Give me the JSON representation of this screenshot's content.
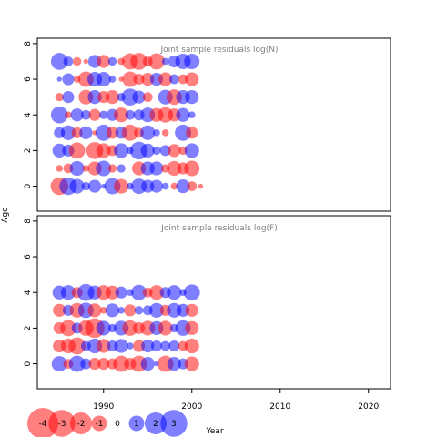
{
  "chart_data": {
    "type": "scatter",
    "subtype": "bubble",
    "ylabel": "Age",
    "xlabel": "Year",
    "colors": {
      "negative": "#ff0000",
      "positive": "#0000ff",
      "frame": "#000000",
      "panel_title": "#808080"
    },
    "x_ticks": [
      "1990",
      "2000",
      "2010",
      "2020"
    ],
    "xlim": [
      1982.5,
      2022.5
    ],
    "years_start": 1985,
    "years_end": 2020,
    "legend": {
      "values": [
        -4,
        -3,
        -2,
        -1,
        0,
        1,
        2,
        3
      ],
      "labels": [
        "-4",
        "-3",
        "-2",
        "-1",
        "0",
        "1",
        "2",
        "3"
      ]
    },
    "panels": [
      {
        "title": "Joint sample residuals log(N)",
        "y_ticks": [
          "0",
          "2",
          "4",
          "6",
          "8"
        ],
        "ylim": [
          -1.4,
          8.3
        ],
        "ages": [
          0,
          1,
          2,
          3,
          4,
          5,
          6,
          7
        ],
        "residuals": [
          [
            -1.3,
            1.3,
            0.9,
            0.3,
            0.7,
            0.1,
            1.1,
            -0.9,
            0.2,
            1.0,
            0.7,
            0.7,
            0.2,
            -0.2,
            0.8,
            -0.4,
            -0.1,
            0.0,
            0.0,
            0.0,
            0.0,
            0.0,
            0.0,
            0.0,
            0.0,
            0.0,
            0.0,
            0.0,
            0.0,
            0.0,
            0.0,
            0.0,
            0.0,
            0.0,
            0.0,
            0.0
          ],
          [
            -0.2,
            -0.4,
            0.9,
            -0.2,
            -0.8,
            1.0,
            -0.3,
            0.3,
            0.0,
            -0.8,
            0.8,
            0.8,
            -0.3,
            -0.9,
            -0.6,
            -1.0,
            0.0,
            0.0,
            0.0,
            0.0,
            0.0,
            0.0,
            0.0,
            0.0,
            0.0,
            0.0,
            0.0,
            0.0,
            0.0,
            0.0,
            0.0,
            0.0,
            0.0,
            0.0,
            0.0,
            0.0
          ],
          [
            0.8,
            0.6,
            -1.1,
            0.0,
            -1.2,
            -0.9,
            -0.5,
            0.9,
            0.2,
            1.3,
            0.8,
            0.3,
            0.5,
            -0.7,
            -0.3,
            0.9,
            0.0,
            0.0,
            0.0,
            0.0,
            0.0,
            0.0,
            0.0,
            0.0,
            0.0,
            0.0,
            0.0,
            0.0,
            0.0,
            0.0,
            0.0,
            0.0,
            0.0,
            0.0,
            0.0,
            0.0
          ],
          [
            0.5,
            0.9,
            -0.5,
            0.7,
            -0.1,
            1.1,
            -0.6,
            0.6,
            -1.1,
            -0.4,
            0.9,
            0.2,
            -0.2,
            0.0,
            1.1,
            -0.6,
            0.0,
            0.0,
            0.0,
            0.0,
            0.0,
            0.0,
            0.0,
            0.0,
            0.0,
            0.0,
            0.0,
            0.0,
            0.0,
            0.0,
            0.0,
            0.0,
            0.0,
            0.0,
            0.0,
            0.0
          ],
          [
            1.2,
            -0.2,
            0.7,
            0.4,
            -0.6,
            0.3,
            0.6,
            -0.9,
            0.4,
            0.5,
            0.9,
            -0.8,
            -1.0,
            -0.7,
            0.8,
            0.2,
            0.0,
            0.0,
            0.0,
            0.0,
            0.0,
            0.0,
            0.0,
            0.0,
            0.0,
            0.0,
            0.0,
            0.0,
            0.0,
            0.0,
            0.0,
            0.0,
            0.0,
            0.0,
            0.0,
            0.0
          ],
          [
            -0.3,
            0.6,
            0.0,
            -0.9,
            0.8,
            -0.6,
            -0.8,
            0.3,
            1.2,
            0.7,
            -0.4,
            0.0,
            0.9,
            -1.0,
            0.8,
            0.8,
            0.0,
            0.0,
            0.0,
            0.0,
            0.0,
            0.0,
            0.0,
            0.0,
            0.0,
            0.0,
            0.0,
            0.0,
            0.0,
            0.0,
            0.0,
            0.0,
            0.0,
            0.0,
            0.0,
            0.0
          ],
          [
            0.1,
            0.6,
            -0.2,
            -1.0,
            0.9,
            0.9,
            0.2,
            -0.1,
            -1.0,
            -0.5,
            -0.7,
            0.7,
            -0.8,
            0.4,
            -0.4,
            -0.8,
            0.0,
            0.0,
            0.0,
            0.0,
            0.0,
            0.0,
            0.0,
            0.0,
            0.0,
            0.0,
            0.0,
            0.0,
            0.0,
            0.0,
            0.0,
            0.0,
            0.0,
            0.0,
            0.0,
            0.0
          ],
          [
            1.2,
            0.4,
            -0.3,
            -0.1,
            0.7,
            -0.7,
            0.3,
            -0.2,
            -1.1,
            -1.2,
            -0.4,
            -1.1,
            0.2,
            0.6,
            1.0,
            1.0,
            0.0,
            0.0,
            0.0,
            0.0,
            0.0,
            0.0,
            0.0,
            0.0,
            0.0,
            0.0,
            0.0,
            0.0,
            0.0,
            0.0,
            0.0,
            0.0,
            0.0,
            0.0,
            0.0,
            0.0
          ]
        ]
      },
      {
        "title": "Joint sample residuals log(F)",
        "y_ticks": [
          "0",
          "2",
          "4",
          "6",
          "8"
        ],
        "ylim": [
          -1.4,
          8.3
        ],
        "ages": [
          0,
          1,
          2,
          3,
          4
        ],
        "residuals": [
          [
            1.0,
            -0.4,
            1.1,
            0.5,
            -0.6,
            -0.6,
            -0.5,
            -1.1,
            -0.6,
            -1.1,
            0.8,
            0.1,
            -1.1,
            0.8,
            0.5,
            -0.9,
            0.0,
            0.0,
            0.0,
            0.0,
            0.0,
            0.0,
            0.0,
            0.0,
            0.0,
            0.0,
            0.0,
            0.0,
            0.0,
            0.0,
            0.0,
            0.0,
            0.0,
            0.0,
            0.0,
            0.0
          ],
          [
            -0.7,
            -0.9,
            -1.2,
            0.4,
            0.9,
            -0.8,
            0.5,
            0.8,
            0.2,
            -0.6,
            0.7,
            0.5,
            0.4,
            0.5,
            -0.4,
            -0.9,
            0.0,
            0.0,
            0.0,
            0.0,
            0.0,
            0.0,
            0.0,
            0.0,
            0.0,
            0.0,
            0.0,
            0.0,
            0.0,
            0.0,
            0.0,
            0.0,
            0.0,
            0.0,
            0.0,
            0.0
          ],
          [
            -0.6,
            -1.1,
            0.5,
            -1.0,
            -1.6,
            0.9,
            0.3,
            0.9,
            -1.0,
            -0.6,
            -0.9,
            0.8,
            -0.9,
            0.3,
            1.0,
            -0.8,
            0.0,
            0.0,
            0.0,
            0.0,
            0.0,
            0.0,
            0.0,
            0.0,
            0.0,
            0.0,
            0.0,
            0.0,
            0.0,
            0.0,
            0.0,
            0.0,
            0.0,
            0.0,
            0.0,
            0.0
          ],
          [
            -0.7,
            0.5,
            -0.9,
            1.0,
            -0.8,
            -0.2,
            0.8,
            0.2,
            -0.6,
            0.3,
            0.4,
            0.9,
            -0.5,
            0.9,
            0.7,
            -0.7,
            0.0,
            0.0,
            0.0,
            0.0,
            0.0,
            0.0,
            0.0,
            0.0,
            0.0,
            0.0,
            0.0,
            0.0,
            0.0,
            0.0,
            0.0,
            0.0,
            0.0,
            0.0,
            0.0,
            0.0
          ],
          [
            0.8,
            0.9,
            -0.5,
            1.2,
            0.8,
            -0.9,
            -0.8,
            0.6,
            0.2,
            1.0,
            -0.4,
            -0.9,
            0.5,
            0.9,
            0.2,
            1.1,
            0.0,
            0.0,
            0.0,
            0.0,
            0.0,
            0.0,
            0.0,
            0.0,
            0.0,
            0.0,
            0.0,
            0.0,
            0.0,
            0.0,
            0.0,
            0.0,
            0.0,
            0.0,
            0.0,
            0.0
          ]
        ]
      }
    ]
  }
}
